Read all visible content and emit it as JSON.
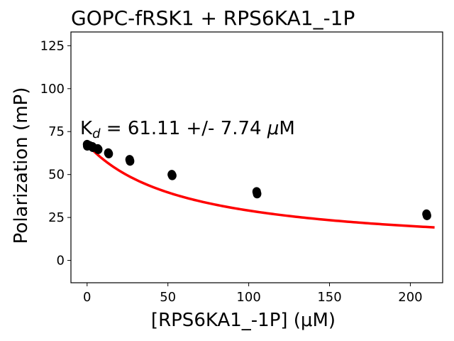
{
  "chart_data": {
    "type": "scatter",
    "title": "GOPC-fRSK1 + RPS6KA1_-1P",
    "xlabel": "[RPS6KA1_-1P] (μM)",
    "ylabel": "Polarization (mP)",
    "xlim": [
      -10,
      220
    ],
    "ylim": [
      -13,
      133
    ],
    "xticks": [
      0,
      50,
      100,
      150,
      200
    ],
    "yticks": [
      0,
      25,
      50,
      75,
      100,
      125
    ],
    "grid": false,
    "annotation": {
      "prefix": "K",
      "subscript": "d",
      "text": " = 61.11 +/- 7.74 ",
      "mu": "μ",
      "unit": "M"
    },
    "points": [
      {
        "x": 0,
        "y": 67.5
      },
      {
        "x": 0.1,
        "y": 66.6
      },
      {
        "x": 0.2,
        "y": 67.1
      },
      {
        "x": 0.4,
        "y": 67.0
      },
      {
        "x": 0.8,
        "y": 66.8
      },
      {
        "x": 1.6,
        "y": 66.8
      },
      {
        "x": 3.3,
        "y": 66.2
      },
      {
        "x": 3.6,
        "y": 65.8
      },
      {
        "x": 6.6,
        "y": 65.0
      },
      {
        "x": 6.9,
        "y": 64.6
      },
      {
        "x": 13.1,
        "y": 62.6
      },
      {
        "x": 13.4,
        "y": 62.1
      },
      {
        "x": 26.3,
        "y": 58.7
      },
      {
        "x": 26.6,
        "y": 57.8
      },
      {
        "x": 52.4,
        "y": 50.0
      },
      {
        "x": 52.7,
        "y": 49.4
      },
      {
        "x": 104.9,
        "y": 40.0
      },
      {
        "x": 105.2,
        "y": 38.8
      },
      {
        "x": 210.0,
        "y": 27.0
      },
      {
        "x": 210.3,
        "y": 26.1
      }
    ],
    "fit": {
      "color": "#ff0000",
      "x_range": [
        0,
        215
      ],
      "kd": 61.11,
      "top": 67.5,
      "bottom": 5.5
    },
    "point_color": "#000000"
  }
}
